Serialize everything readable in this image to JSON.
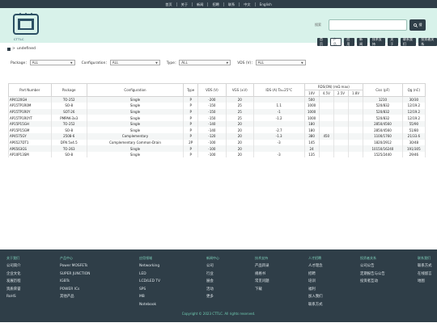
{
  "top_links": [
    "首页",
    "关于",
    "新闻",
    "招聘",
    "联系",
    "中文",
    "English"
  ],
  "header": {
    "logo_text": "CTTLC",
    "search_label": "搜索",
    "search_placeholder": "",
    "search_button": "搜"
  },
  "main_nav": [
    {
      "label": "首页",
      "active": false
    },
    {
      "label": "产品",
      "active": true
    },
    {
      "label": "应用",
      "active": false
    },
    {
      "label": "新闻",
      "active": false
    },
    {
      "label": "技术支持",
      "active": false
    },
    {
      "label": "关于",
      "active": false
    },
    {
      "label": "联系我们",
      "active": false
    },
    {
      "label": "投资者关系",
      "active": false
    }
  ],
  "breadcrumb": {
    "separator": ">",
    "current": "undefined"
  },
  "filters": [
    {
      "label": "Package：",
      "value": "ALL"
    },
    {
      "label": "Configuration：",
      "value": "ALL"
    },
    {
      "label": "Type：",
      "value": "ALL"
    },
    {
      "label": "VDS (V)：",
      "value": "ALL"
    }
  ],
  "table": {
    "headers": {
      "part_number": "Part Number",
      "package": "Package",
      "configuration": "Configuration",
      "type": "Type",
      "vds": "VDS (V)",
      "vgs": "VGS (±V)",
      "ids": "IDS (A) Ta=25°C",
      "rds": "RDS(ON) (mΩ max)",
      "rds_sub": [
        "10V",
        "4.5V",
        "2.5V",
        "1.8V"
      ],
      "ciss": "Ciss (pF)",
      "qg": "Qg (nC)"
    },
    "rows": [
      [
        "AP4120GH",
        "TO-252",
        "Single",
        "P",
        "-200",
        "20",
        "",
        "500",
        "",
        "",
        "",
        "1210",
        "30/30"
      ],
      [
        "AP15TP1R0M",
        "SO-8",
        "Single",
        "P",
        "-150",
        "25",
        "1.1",
        "1000",
        "",
        "",
        "",
        "520/832",
        "12/19.2"
      ],
      [
        "AP15TP1R0Y",
        "SOT-26",
        "Single",
        "P",
        "-150",
        "25",
        "-1",
        "1000",
        "",
        "",
        "",
        "520/832",
        "12/19.2"
      ],
      [
        "AP15TP1R0YT",
        "PMPAK-3x3",
        "Single",
        "P",
        "-150",
        "25",
        "-1.2",
        "1000",
        "",
        "",
        "",
        "520/832",
        "12/19.2"
      ],
      [
        "AP15P15GH",
        "TO-252",
        "Single",
        "P",
        "-140",
        "20",
        "",
        "180",
        "",
        "",
        "",
        "2850/4560",
        "55/90"
      ],
      [
        "AP15P15GM",
        "SO-8",
        "Single",
        "P",
        "-140",
        "20",
        "-2.7",
        "180",
        "",
        "",
        "",
        "2850/4560",
        "51/80"
      ],
      [
        "AP4575GY",
        "2508-6",
        "Complementary",
        "P",
        "-120",
        "20",
        "-1.3",
        "380",
        "450",
        "",
        "",
        "1100/1760",
        "21/33.6"
      ],
      [
        "AP6527DT1",
        "DFN 5x4.5",
        "Complementary Common-Drain",
        "2P",
        "-100",
        "20",
        "-3",
        "145",
        "",
        "",
        "",
        "1820/2912",
        "30/48"
      ],
      [
        "AP6563GS",
        "TO-263",
        "Single",
        "P",
        "-100",
        "20",
        "",
        "24",
        "",
        "",
        "",
        "10150/16240",
        "191/305"
      ],
      [
        "AP10P13SM",
        "SO-8",
        "Single",
        "P",
        "-100",
        "20",
        "-3",
        "135",
        "",
        "",
        "",
        "1525/2440",
        "29/46"
      ]
    ]
  },
  "footer": {
    "columns": [
      {
        "heading": "关于我们",
        "items": [
          "公司简介",
          "企业文化",
          "发展历程",
          "资质荣誉",
          "RoHS"
        ]
      },
      {
        "heading": "产品中心",
        "items": [
          "Power MOSFETs",
          "SUPER JUNCTION",
          "IGBTs",
          "POWER ICs",
          "其他产品"
        ]
      },
      {
        "heading": "应用领域",
        "items": [
          "Networking",
          "LED",
          "LCD/LED TV",
          "SPS",
          "MB",
          "Notebook"
        ]
      },
      {
        "heading": "新闻中心",
        "items": [
          "公司",
          "行业",
          "展会",
          "活动",
          "更多"
        ]
      },
      {
        "heading": "技术支持",
        "items": [
          "产品目录",
          "规格书",
          "常见问题",
          "下载"
        ]
      },
      {
        "heading": "人才招聘",
        "items": [
          "人才理念",
          "招聘",
          "培训",
          "福利",
          "加入我们",
          "联系方式"
        ]
      },
      {
        "heading": "投资者关系",
        "items": [
          "公司公告",
          "定期报告与公告",
          "投资者互动"
        ]
      },
      {
        "heading": "联系我们",
        "items": [
          "联系方式",
          "在线留言",
          "地图"
        ]
      }
    ],
    "copyright": "Copyright © 2023 CTTLC. All rights reserved."
  },
  "colors": {
    "header_bg": "#d8f2ea",
    "dark": "#2f3e48",
    "footer_heading": "#7fd1bb"
  },
  "icons": {
    "search": "search-icon",
    "home": "home-icon",
    "dropdown": "chevron-down-icon"
  }
}
